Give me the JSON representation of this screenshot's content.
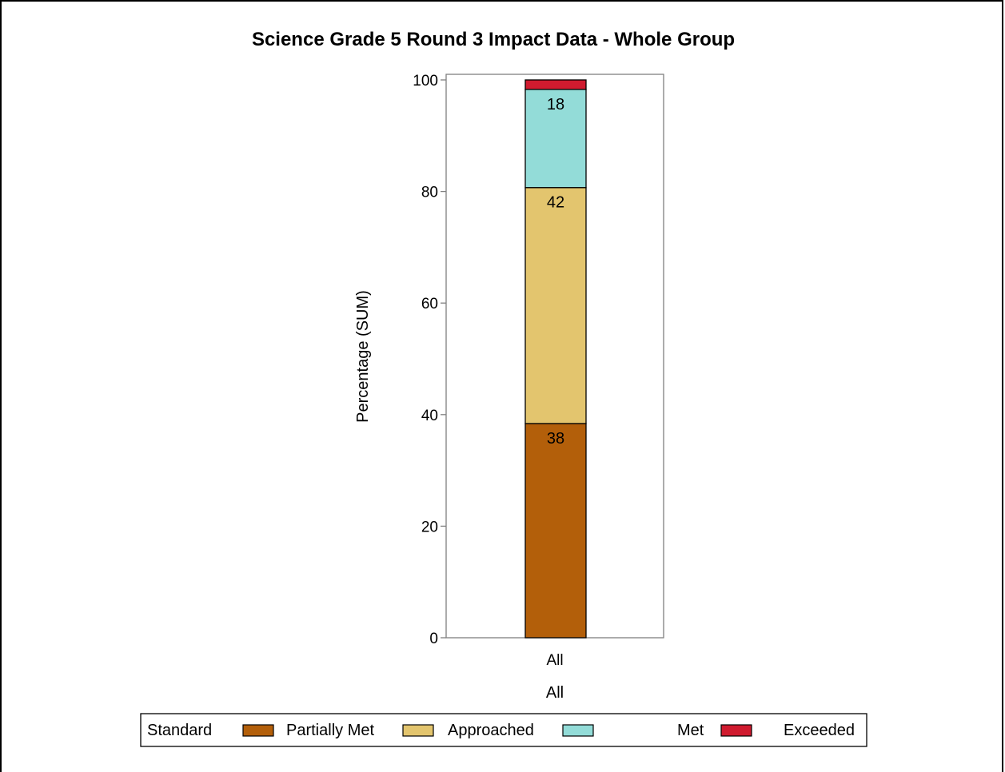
{
  "chart_data": {
    "type": "bar",
    "stacked": true,
    "title": "Science Grade 5 Round 3 Impact Data - Whole Group",
    "ylabel": "Percentage (SUM)",
    "xlabel": "All",
    "categories": [
      "All"
    ],
    "ylim": [
      0,
      100
    ],
    "yticks": [
      "0",
      "20",
      "40",
      "60",
      "80",
      "100"
    ],
    "series": [
      {
        "name": "Partially Met",
        "values": [
          38.4
        ],
        "label": "38",
        "color": "#b35f0a"
      },
      {
        "name": "Approached",
        "values": [
          42.3
        ],
        "label": "42",
        "color": "#e3c56e"
      },
      {
        "name": "Met",
        "values": [
          17.6
        ],
        "label": "18",
        "color": "#93dcd8"
      },
      {
        "name": "Exceeded",
        "values": [
          1.7
        ],
        "label": "",
        "color": "#d01b2f"
      }
    ],
    "legend": {
      "title": "Standard",
      "placement": "bottom",
      "entries": [
        "Partially Met",
        "Approached",
        "Met",
        "Exceeded"
      ]
    },
    "grid": false
  }
}
